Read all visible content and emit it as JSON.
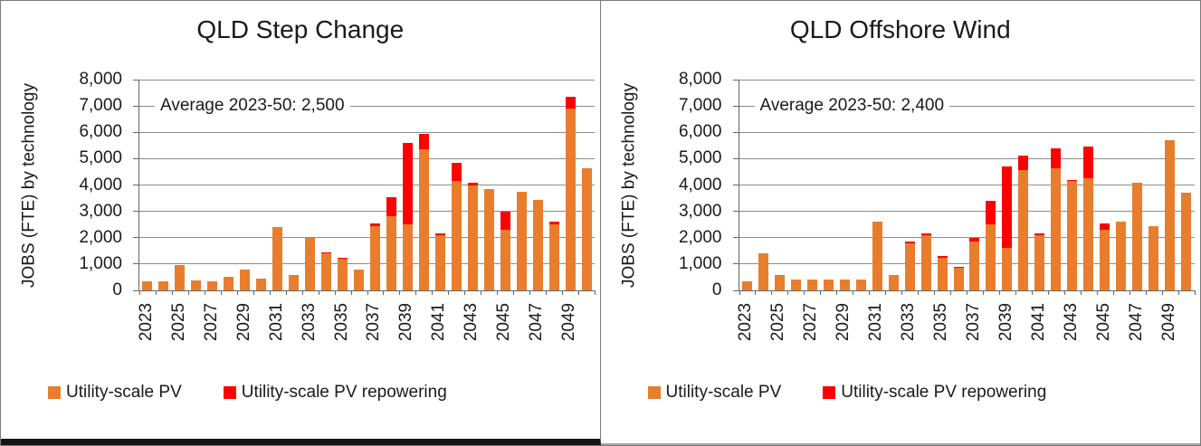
{
  "colors": {
    "pv_orange": "#E87D2D",
    "repowering_red": "#FE0000",
    "gridline_gray": "#8C8C8C",
    "axis_gray": "#666666"
  },
  "chart_data": [
    {
      "type": "bar",
      "stacked": true,
      "title": "QLD Step Change",
      "annotation": "Average 2023-50: 2,500",
      "ylabel": "JOBS (FTE) by technology",
      "xlabel": "",
      "ylim": [
        0,
        8000
      ],
      "ytick_step": 1000,
      "grid": true,
      "legend_position": "bottom",
      "categories": [
        "2023",
        "2024",
        "2025",
        "2026",
        "2027",
        "2028",
        "2029",
        "2030",
        "2031",
        "2032",
        "2033",
        "2034",
        "2035",
        "2036",
        "2037",
        "2038",
        "2039",
        "2040",
        "2041",
        "2042",
        "2043",
        "2044",
        "2045",
        "2046",
        "2047",
        "2048",
        "2049",
        "2050"
      ],
      "xtick_labels_shown": [
        "2023",
        "2025",
        "2027",
        "2029",
        "2031",
        "2033",
        "2035",
        "2037",
        "2039",
        "2041",
        "2043",
        "2045",
        "2047",
        "2049"
      ],
      "series": [
        {
          "name": "Utility-scale PV",
          "color": "#E87D2D",
          "values": [
            350,
            350,
            950,
            380,
            350,
            520,
            800,
            430,
            2400,
            600,
            2000,
            1400,
            1200,
            800,
            2450,
            2800,
            2500,
            5350,
            2100,
            4150,
            4000,
            3850,
            2300,
            3750,
            3450,
            2500,
            6900,
            4650
          ]
        },
        {
          "name": "Utility-scale PV repowering",
          "color": "#FE0000",
          "values": [
            0,
            0,
            0,
            0,
            0,
            0,
            0,
            0,
            0,
            0,
            0,
            50,
            50,
            0,
            100,
            750,
            3100,
            600,
            75,
            700,
            100,
            0,
            700,
            0,
            0,
            100,
            450,
            0
          ]
        }
      ]
    },
    {
      "type": "bar",
      "stacked": true,
      "title": "QLD Offshore Wind",
      "annotation": "Average 2023-50: 2,400",
      "ylabel": "JOBS (FTE) by technology",
      "xlabel": "",
      "ylim": [
        0,
        8000
      ],
      "ytick_step": 1000,
      "grid": true,
      "legend_position": "bottom",
      "categories": [
        "2023",
        "2024",
        "2025",
        "2026",
        "2027",
        "2028",
        "2029",
        "2030",
        "2031",
        "2032",
        "2033",
        "2034",
        "2035",
        "2036",
        "2037",
        "2038",
        "2039",
        "2040",
        "2041",
        "2042",
        "2043",
        "2044",
        "2045",
        "2046",
        "2047",
        "2048",
        "2049",
        "2050"
      ],
      "xtick_labels_shown": [
        "2023",
        "2025",
        "2027",
        "2029",
        "2031",
        "2033",
        "2035",
        "2037",
        "2039",
        "2041",
        "2043",
        "2045",
        "2047",
        "2049"
      ],
      "series": [
        {
          "name": "Utility-scale PV",
          "color": "#E87D2D",
          "values": [
            350,
            1400,
            600,
            400,
            400,
            400,
            400,
            400,
            2600,
            600,
            1800,
            2100,
            1250,
            850,
            1850,
            2500,
            1600,
            4550,
            2100,
            4650,
            4150,
            4250,
            2300,
            2600,
            4100,
            2450,
            5700,
            3700
          ]
        },
        {
          "name": "Utility-scale PV repowering",
          "color": "#FE0000",
          "values": [
            0,
            0,
            0,
            0,
            0,
            0,
            0,
            0,
            0,
            0,
            50,
            50,
            50,
            50,
            150,
            900,
            3100,
            550,
            75,
            750,
            50,
            1200,
            250,
            0,
            0,
            0,
            0,
            0
          ]
        }
      ]
    }
  ]
}
